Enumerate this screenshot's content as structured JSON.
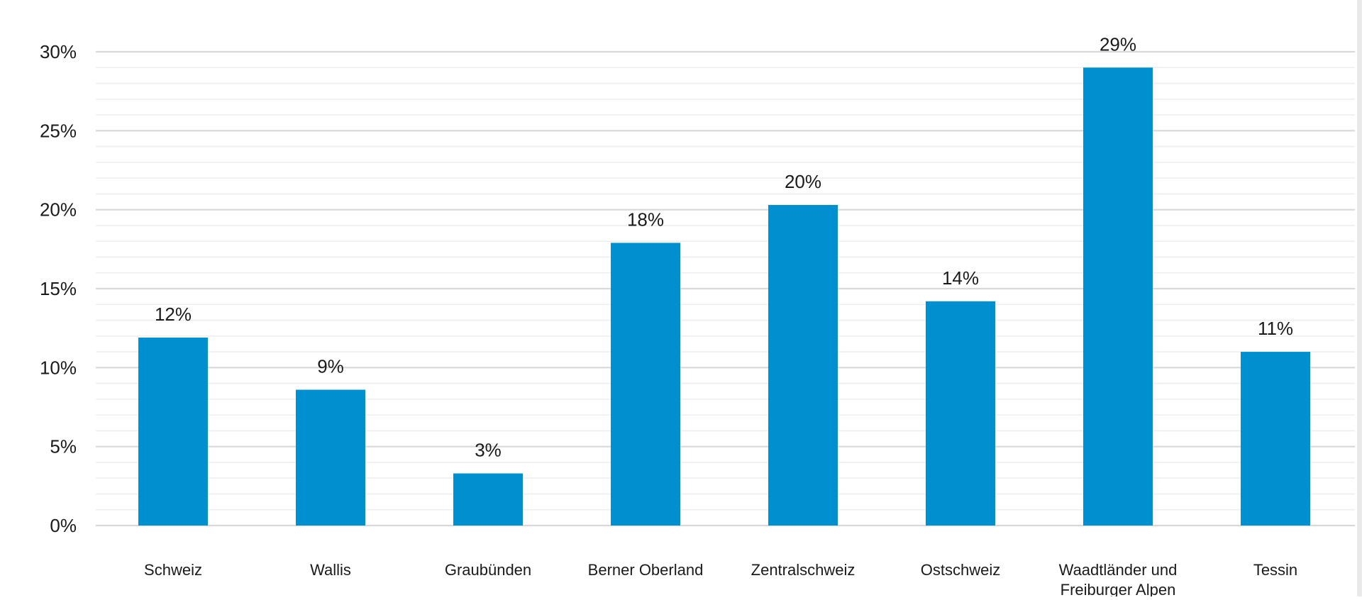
{
  "chart_data": {
    "type": "bar",
    "title": "",
    "xlabel": "",
    "ylabel": "",
    "categories": [
      [
        "Schweiz"
      ],
      [
        "Wallis"
      ],
      [
        "Graubünden"
      ],
      [
        "Berner Oberland"
      ],
      [
        "Zentralschweiz"
      ],
      [
        "Ostschweiz"
      ],
      [
        "Waadtländer und",
        "Freiburger Alpen"
      ],
      [
        "Tessin"
      ]
    ],
    "values": [
      11.9,
      8.6,
      3.3,
      17.9,
      20.3,
      14.2,
      29.0,
      11.0
    ],
    "data_labels": [
      "12%",
      "9%",
      "3%",
      "18%",
      "20%",
      "14%",
      "29%",
      "11%"
    ],
    "y_ticks": [
      0,
      5,
      10,
      15,
      20,
      25,
      30
    ],
    "y_tick_labels": [
      "0%",
      "5%",
      "10%",
      "15%",
      "20%",
      "25%",
      "30%"
    ],
    "ylim": [
      0,
      30
    ],
    "grid": true,
    "legend": "none",
    "colors": {
      "bar": "#0090d0",
      "major_grid": "#d9d9d9",
      "minor_grid": "#eeeeee",
      "text": "#1a1a1a"
    }
  }
}
